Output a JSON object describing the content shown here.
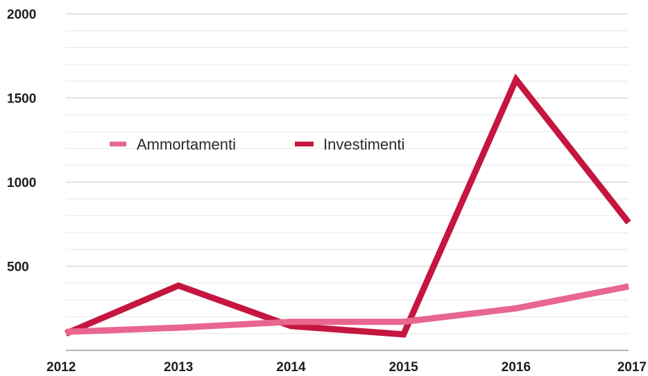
{
  "chart_data": {
    "type": "line",
    "x": [
      "2012",
      "2013",
      "2014",
      "2015",
      "2016",
      "2017"
    ],
    "series": [
      {
        "name": "Ammortamenti",
        "color": "#e8668f",
        "values": [
          110,
          135,
          170,
          170,
          250,
          380
        ]
      },
      {
        "name": "Investimenti",
        "color": "#c4163f",
        "values": [
          100,
          385,
          145,
          95,
          1610,
          760
        ]
      }
    ],
    "title": "",
    "xlabel": "",
    "ylabel": "",
    "ylim": [
      0,
      2000
    ],
    "yticks": [
      500,
      1000,
      1500,
      2000
    ],
    "ytick_labels": [
      "500",
      "1000",
      "1500",
      "2000"
    ],
    "grid": true,
    "legend_position": "top-left"
  }
}
